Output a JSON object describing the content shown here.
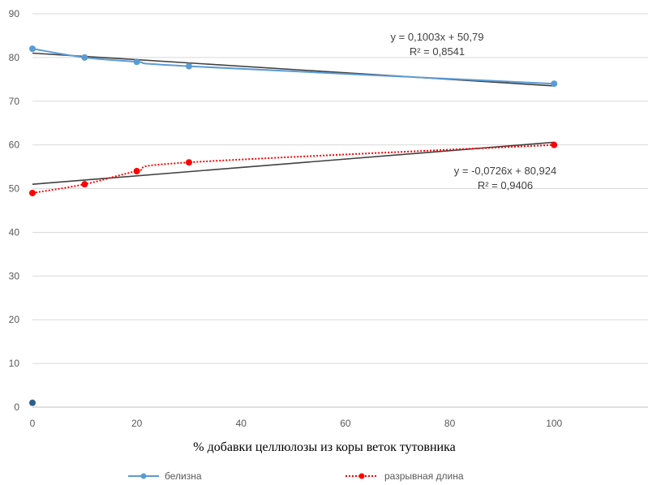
{
  "chart_data": {
    "type": "scatter",
    "xlabel": "% добавки целлюлозы из коры веток тутовника",
    "ylabel": "",
    "xlim": [
      0,
      118
    ],
    "ylim": [
      0,
      90
    ],
    "x_ticks": [
      "0",
      "20",
      "40",
      "60",
      "80",
      "100"
    ],
    "y_ticks": [
      "0",
      "10",
      "20",
      "30",
      "40",
      "50",
      "60",
      "70",
      "80",
      "90"
    ],
    "grid": "horizontal",
    "legend_position": "bottom",
    "series": [
      {
        "name": "белизна",
        "color": "#5b9bd5",
        "line": "solid-smooth",
        "x": [
          0,
          10,
          20,
          30,
          100
        ],
        "y": [
          82,
          80,
          79,
          78,
          74
        ]
      },
      {
        "name": "разрывная длина",
        "color": "#ff0000",
        "line": "dotted-smooth",
        "x": [
          0,
          10,
          20,
          30,
          100
        ],
        "y": [
          49,
          51,
          54,
          56,
          60
        ]
      }
    ],
    "extra_points": [
      {
        "x": 0,
        "y": 1,
        "color": "#2e5f8a"
      }
    ],
    "trendlines": [
      {
        "x": [
          0,
          100
        ],
        "y": [
          81,
          73.5
        ],
        "color": "#404040"
      },
      {
        "x": [
          0,
          100
        ],
        "y": [
          51,
          60.6
        ],
        "color": "#404040"
      }
    ],
    "annotations": [
      {
        "line1": "y = 0,1003x + 50,79",
        "line2": "R² = 0,8541"
      },
      {
        "line1": "y = -0,0726x + 80,924",
        "line2": "R² = 0,9406"
      }
    ]
  }
}
